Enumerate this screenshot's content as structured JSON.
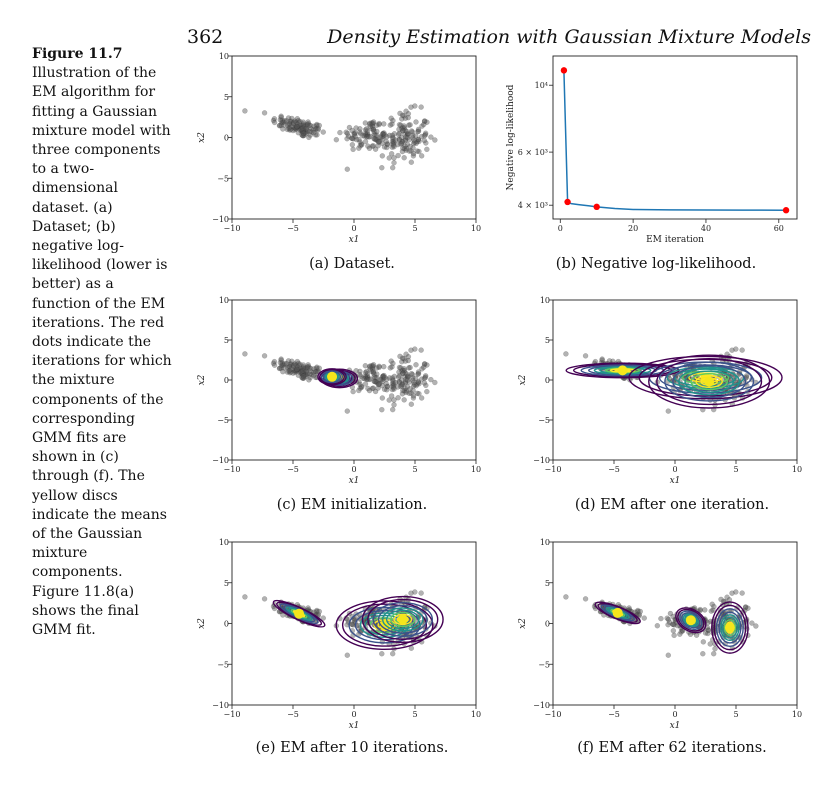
{
  "header": {
    "page_number": "362",
    "running_title": "Density Estimation with Gaussian Mixture Models"
  },
  "caption": {
    "label": "Figure 11.7",
    "text": "Illustration of the EM algorithm for fitting a Gaussian mixture model with three components to a two-dimensional dataset. (a) Dataset; (b) negative log-likelihood (lower is better) as a function of the EM iterations. The red dots indicate the iterations for which the mixture components of the corresponding GMM fits are shown in (c) through (f). The yellow discs indicate the means of the Gaussian mixture components. Figure 11.8(a) shows the final GMM fit."
  },
  "colors": {
    "points": "#555555",
    "likelihood_line": "#1f77b4",
    "likelihood_markers": "#ff0000",
    "component_mean": "#f5e61c",
    "contours": [
      "#440154",
      "#3b528b",
      "#21918c",
      "#5ec962",
      "#fde725"
    ]
  },
  "chart_data": [
    {
      "id": "a",
      "type": "scatter",
      "caption": "(a) Dataset.",
      "xlabel": "x1",
      "ylabel": "x2",
      "xlim": [
        -10,
        10
      ],
      "ylim": [
        -10,
        10
      ],
      "xticks": [
        "−10",
        "−5",
        "0",
        "5",
        "10"
      ],
      "yticks": [
        "10",
        "5",
        "0",
        "−5",
        "−10"
      ],
      "clusters": [
        {
          "mean": [
            -4.5,
            1.3
          ],
          "std": [
            1.1,
            0.7
          ],
          "rho": -0.6,
          "n": 110
        },
        {
          "mean": [
            1.0,
            0.3
          ],
          "std": [
            1.0,
            1.0
          ],
          "rho": 0.0,
          "n": 70
        },
        {
          "mean": [
            4.0,
            0.0
          ],
          "std": [
            1.1,
            1.6
          ],
          "rho": 0.0,
          "n": 140
        }
      ]
    },
    {
      "id": "b",
      "type": "line",
      "caption": "(b) Negative log-likelihood.",
      "xlabel": "EM iteration",
      "ylabel": "Negative log-likelihood",
      "yscale": "log",
      "xlim": [
        -2,
        65
      ],
      "ylim": [
        3600,
        12500
      ],
      "xticks": [
        "0",
        "20",
        "40",
        "60"
      ],
      "yticks": [
        "10⁴",
        "6 × 10³",
        "4 × 10³"
      ],
      "series": [
        {
          "x": [
            1,
            2,
            3,
            5,
            8,
            10,
            15,
            20,
            30,
            40,
            50,
            62
          ],
          "y": [
            11200,
            4100,
            4050,
            4020,
            3980,
            3950,
            3900,
            3870,
            3860,
            3855,
            3852,
            3850
          ]
        }
      ],
      "highlighted_iterations": [
        1,
        2,
        10,
        62
      ]
    },
    {
      "id": "c",
      "type": "scatter",
      "caption": "(c) EM initialization.",
      "xlabel": "x1",
      "ylabel": "x2",
      "xlim": [
        -10,
        10
      ],
      "ylim": [
        -10,
        10
      ],
      "xticks": [
        "−10",
        "−5",
        "0",
        "5",
        "10"
      ],
      "yticks": [
        "10",
        "5",
        "0",
        "−5",
        "−10"
      ],
      "components": [
        {
          "mean": [
            -1.5,
            0.3
          ],
          "sx": 0.8,
          "sy": 0.6,
          "rot": 0
        },
        {
          "mean": [
            -1.2,
            0.2
          ],
          "sx": 0.9,
          "sy": 0.7,
          "rot": 0
        },
        {
          "mean": [
            -1.8,
            0.4
          ],
          "sx": 0.7,
          "sy": 0.6,
          "rot": 0
        }
      ]
    },
    {
      "id": "d",
      "type": "scatter",
      "caption": "(d) EM after one iteration.",
      "xlabel": "x1",
      "ylabel": "x2",
      "xlim": [
        -10,
        10
      ],
      "ylim": [
        -10,
        10
      ],
      "xticks": [
        "−10",
        "−5",
        "0",
        "5",
        "10"
      ],
      "yticks": [
        "10",
        "5",
        "0",
        "−5",
        "−10"
      ],
      "components": [
        {
          "mean": [
            -4.3,
            1.2
          ],
          "sx": 2.8,
          "sy": 0.55,
          "rot": 0
        },
        {
          "mean": [
            2.5,
            0.3
          ],
          "sx": 3.8,
          "sy": 1.6,
          "rot": 0
        },
        {
          "mean": [
            2.8,
            -0.2
          ],
          "sx": 3.0,
          "sy": 2.0,
          "rot": 0
        }
      ]
    },
    {
      "id": "e",
      "type": "scatter",
      "caption": "(e) EM after 10 iterations.",
      "xlabel": "x1",
      "ylabel": "x2",
      "xlim": [
        -10,
        10
      ],
      "ylim": [
        -10,
        10
      ],
      "xticks": [
        "−10",
        "−5",
        "0",
        "5",
        "10"
      ],
      "yticks": [
        "10",
        "5",
        "0",
        "−5",
        "−10"
      ],
      "components": [
        {
          "mean": [
            -4.5,
            1.2
          ],
          "sx": 1.4,
          "sy": 0.45,
          "rot": 25
        },
        {
          "mean": [
            2.5,
            -0.2
          ],
          "sx": 2.4,
          "sy": 1.8,
          "rot": 0
        },
        {
          "mean": [
            4.0,
            0.5
          ],
          "sx": 2.0,
          "sy": 1.7,
          "rot": 0
        }
      ]
    },
    {
      "id": "f",
      "type": "scatter",
      "caption": "(f) EM after 62 iterations.",
      "xlabel": "x1",
      "ylabel": "x2",
      "xlim": [
        -10,
        10
      ],
      "ylim": [
        -10,
        10
      ],
      "xticks": [
        "−10",
        "−5",
        "0",
        "5",
        "10"
      ],
      "yticks": [
        "10",
        "5",
        "0",
        "−5",
        "−10"
      ],
      "components": [
        {
          "mean": [
            -4.7,
            1.3
          ],
          "sx": 1.2,
          "sy": 0.45,
          "rot": 22
        },
        {
          "mean": [
            1.3,
            0.4
          ],
          "sx": 0.8,
          "sy": 0.8,
          "rot": 30
        },
        {
          "mean": [
            4.5,
            -0.5
          ],
          "sx": 0.9,
          "sy": 1.9,
          "rot": 0
        }
      ]
    }
  ]
}
